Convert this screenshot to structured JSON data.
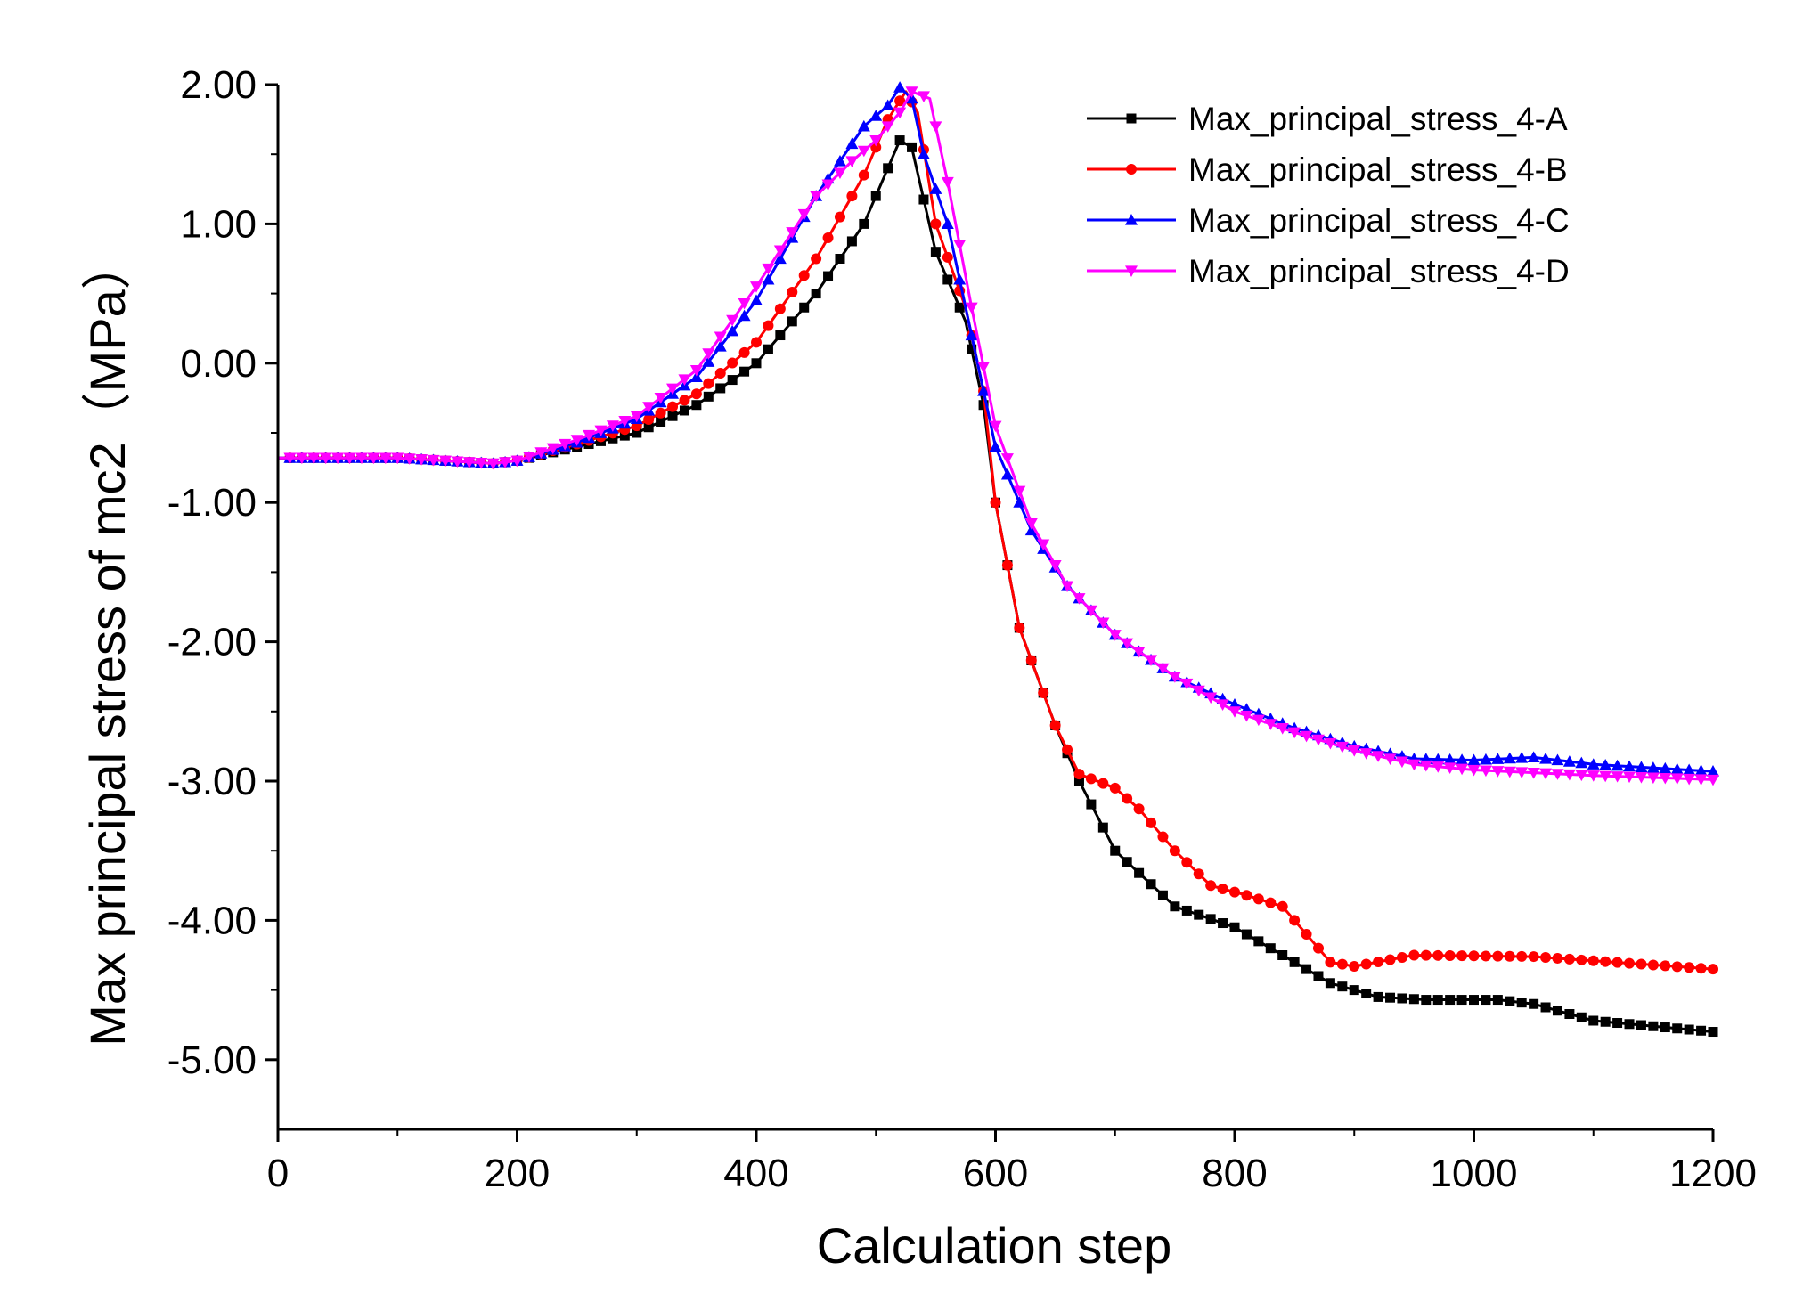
{
  "chart_data": {
    "type": "line",
    "title": "",
    "xlabel": "Calculation step",
    "ylabel": "Max principal stress of mc2（MPa）",
    "xlim": [
      0,
      1200
    ],
    "ylim": [
      -5.5,
      2.0
    ],
    "xticks": [
      0,
      200,
      400,
      600,
      800,
      1000,
      1200
    ],
    "xtick_labels": [
      "0",
      "200",
      "400",
      "600",
      "800",
      "1000",
      "1200"
    ],
    "yticks": [
      2.0,
      1.0,
      0.0,
      -1.0,
      -2.0,
      -3.0,
      -4.0,
      -5.0
    ],
    "ytick_labels": [
      "2.00",
      "1.00",
      "0.00",
      "-1.00",
      "-2.00",
      "-3.00",
      "-4.00",
      "-5.00"
    ],
    "legend_position": "top-right",
    "grid": false,
    "series": [
      {
        "name": "Max_principal_stress_4-A",
        "color": "#000000",
        "marker": "square",
        "x": [
          0,
          100,
          180,
          200,
          250,
          300,
          350,
          400,
          450,
          490,
          510,
          520,
          530,
          550,
          575,
          590,
          600,
          620,
          650,
          670,
          700,
          750,
          800,
          840,
          880,
          920,
          960,
          1020,
          1050,
          1100,
          1200
        ],
        "y": [
          -0.68,
          -0.68,
          -0.72,
          -0.7,
          -0.6,
          -0.5,
          -0.3,
          0.0,
          0.5,
          1.0,
          1.4,
          1.6,
          1.55,
          0.8,
          0.3,
          -0.3,
          -1.0,
          -1.9,
          -2.6,
          -3.0,
          -3.5,
          -3.9,
          -4.05,
          -4.25,
          -4.45,
          -4.55,
          -4.57,
          -4.57,
          -4.6,
          -4.72,
          -4.8
        ]
      },
      {
        "name": "Max_principal_stress_4-B",
        "color": "#ff0000",
        "marker": "circle",
        "x": [
          0,
          100,
          180,
          200,
          250,
          300,
          350,
          400,
          450,
          490,
          510,
          525,
          535,
          550,
          575,
          590,
          600,
          620,
          650,
          670,
          700,
          720,
          750,
          780,
          810,
          840,
          860,
          880,
          900,
          950,
          1050,
          1200
        ],
        "y": [
          -0.68,
          -0.68,
          -0.72,
          -0.7,
          -0.58,
          -0.45,
          -0.22,
          0.15,
          0.75,
          1.35,
          1.75,
          1.95,
          1.8,
          1.0,
          0.4,
          -0.2,
          -1.0,
          -1.9,
          -2.6,
          -2.95,
          -3.05,
          -3.2,
          -3.5,
          -3.75,
          -3.82,
          -3.9,
          -4.1,
          -4.3,
          -4.33,
          -4.25,
          -4.26,
          -4.35
        ]
      },
      {
        "name": "Max_principal_stress_4-C",
        "color": "#0000ff",
        "marker": "triangle-up",
        "x": [
          0,
          100,
          180,
          200,
          250,
          300,
          350,
          400,
          450,
          490,
          510,
          520,
          530,
          540,
          560,
          580,
          600,
          630,
          660,
          700,
          750,
          800,
          850,
          900,
          950,
          1000,
          1050,
          1100,
          1200
        ],
        "y": [
          -0.68,
          -0.68,
          -0.72,
          -0.7,
          -0.57,
          -0.4,
          -0.1,
          0.45,
          1.2,
          1.7,
          1.85,
          1.98,
          1.9,
          1.5,
          1.0,
          0.2,
          -0.6,
          -1.2,
          -1.6,
          -1.95,
          -2.25,
          -2.45,
          -2.62,
          -2.75,
          -2.84,
          -2.85,
          -2.83,
          -2.88,
          -2.93
        ]
      },
      {
        "name": "Max_principal_stress_4-D",
        "color": "#ff00ff",
        "marker": "triangle-down",
        "x": [
          0,
          100,
          180,
          200,
          250,
          300,
          350,
          400,
          450,
          480,
          500,
          520,
          530,
          545,
          560,
          580,
          600,
          630,
          660,
          700,
          750,
          800,
          850,
          900,
          950,
          1000,
          1050,
          1100,
          1200
        ],
        "y": [
          -0.68,
          -0.68,
          -0.72,
          -0.7,
          -0.55,
          -0.38,
          -0.05,
          0.55,
          1.2,
          1.45,
          1.6,
          1.8,
          1.95,
          1.9,
          1.3,
          0.4,
          -0.45,
          -1.15,
          -1.6,
          -1.95,
          -2.25,
          -2.5,
          -2.65,
          -2.78,
          -2.88,
          -2.92,
          -2.94,
          -2.96,
          -2.99
        ]
      }
    ]
  }
}
